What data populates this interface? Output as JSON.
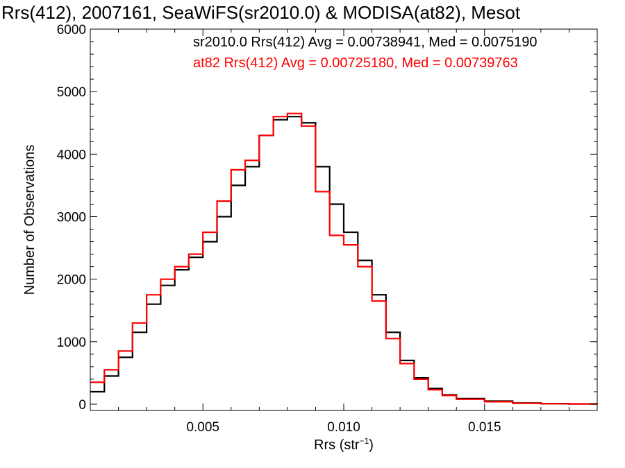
{
  "chart_data": {
    "type": "line",
    "step": true,
    "title": "Rrs(412), 2007161, SeaWiFS(sr2010.0) & MODISA(at82), Mesot",
    "xlabel": "Rrs (str",
    "xlabel_sup": "−1",
    "xlabel_end": ")",
    "ylabel": "Number of Observations",
    "xlim": [
      0.001,
      0.019
    ],
    "ylim": [
      -100,
      6000
    ],
    "xticks": [
      0.005,
      0.01,
      0.015
    ],
    "xtick_labels": [
      "0.005",
      "0.010",
      "0.015"
    ],
    "yticks": [
      0,
      1000,
      2000,
      3000,
      4000,
      5000,
      6000
    ],
    "ytick_labels": [
      "0",
      "1000",
      "2000",
      "3000",
      "4000",
      "5000",
      "6000"
    ],
    "grid": false,
    "annotations": [
      {
        "text": "sr2010.0 Rrs(412) Avg = 0.00738941, Med = 0.0075190",
        "color": "#000000"
      },
      {
        "text": "at82 Rrs(412) Avg = 0.00725180, Med = 0.00739763",
        "color": "#ff0000"
      }
    ],
    "series": [
      {
        "color": "#000000",
        "x": [
          0.001,
          0.0015,
          0.002,
          0.0025,
          0.003,
          0.0035,
          0.004,
          0.0045,
          0.005,
          0.0055,
          0.006,
          0.0065,
          0.007,
          0.0075,
          0.008,
          0.0085,
          0.009,
          0.0095,
          0.01,
          0.0105,
          0.011,
          0.0115,
          0.012,
          0.0125,
          0.013,
          0.0135,
          0.014,
          0.015,
          0.016,
          0.017,
          0.018,
          0.019
        ],
        "y": [
          200,
          450,
          750,
          1150,
          1600,
          1900,
          2150,
          2350,
          2600,
          3000,
          3500,
          3800,
          4300,
          4550,
          4600,
          4500,
          3800,
          3200,
          2750,
          2300,
          1750,
          1150,
          700,
          420,
          250,
          150,
          90,
          50,
          20,
          10,
          5,
          0
        ]
      },
      {
        "color": "#ff0000",
        "x": [
          0.001,
          0.0015,
          0.002,
          0.0025,
          0.003,
          0.0035,
          0.004,
          0.0045,
          0.005,
          0.0055,
          0.006,
          0.0065,
          0.007,
          0.0075,
          0.008,
          0.0085,
          0.009,
          0.0095,
          0.01,
          0.0105,
          0.011,
          0.0115,
          0.012,
          0.0125,
          0.013,
          0.0135,
          0.014,
          0.015,
          0.016,
          0.017,
          0.018,
          0.019
        ],
        "y": [
          350,
          550,
          850,
          1300,
          1750,
          2000,
          2200,
          2400,
          2750,
          3250,
          3750,
          3900,
          4300,
          4600,
          4650,
          4450,
          3400,
          2700,
          2550,
          2200,
          1650,
          1050,
          650,
          400,
          230,
          140,
          80,
          40,
          15,
          8,
          4,
          0
        ]
      }
    ]
  }
}
